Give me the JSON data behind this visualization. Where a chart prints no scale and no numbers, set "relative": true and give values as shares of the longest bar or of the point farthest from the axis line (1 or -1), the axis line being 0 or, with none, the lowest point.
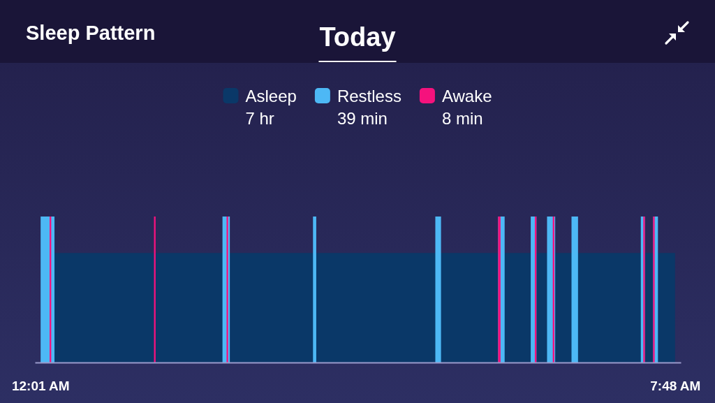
{
  "chart_data": {
    "type": "area",
    "title": "Sleep Pattern",
    "subtitle": "Today",
    "relative": true,
    "xlim": [
      -0.05,
      7.87
    ],
    "xticks": [
      {
        "value": 0.0167,
        "label": "12:01 AM"
      },
      {
        "value": 7.8,
        "label": "7:48 AM"
      }
    ],
    "legend": "top",
    "annotations": [
      "7 hr",
      "39 min",
      "8 min"
    ],
    "series": [
      {
        "name": "Asleep",
        "color": "#0a3868",
        "x": [
          0.19,
          0.19,
          7.8,
          7.8
        ],
        "values": [
          0,
          0.75,
          0.75,
          0
        ]
      },
      {
        "name": "Restless",
        "color": "#4db8f5",
        "x": [
          0.02,
          0.02,
          0.19,
          0.19,
          2.25,
          2.25,
          2.34,
          2.34,
          3.36,
          3.36,
          3.4,
          3.4,
          4.86,
          4.86,
          4.93,
          4.93,
          5.63,
          5.63,
          5.71,
          5.71,
          6.03,
          6.03,
          6.1,
          6.1,
          6.23,
          6.23,
          6.33,
          6.33,
          6.53,
          6.53,
          6.61,
          6.61,
          7.38,
          7.38,
          7.43,
          7.43,
          7.53,
          7.53,
          7.59,
          7.59
        ],
        "values": [
          0,
          1,
          1,
          0,
          0,
          1,
          1,
          0,
          0,
          1,
          1,
          0,
          0,
          1,
          1,
          0,
          0,
          1,
          1,
          0,
          0,
          1,
          1,
          0,
          0,
          1,
          1,
          0,
          0,
          1,
          1,
          0,
          0,
          1,
          1,
          0,
          0,
          1,
          1,
          0
        ]
      },
      {
        "name": "Awake",
        "color": "#f5127d",
        "x": [
          0.13,
          0.13,
          0.15,
          0.15,
          1.41,
          1.41,
          1.43,
          1.43,
          2.3,
          2.3,
          2.32,
          2.32,
          5.63,
          5.63,
          5.66,
          5.66,
          6.08,
          6.08,
          6.1,
          6.1,
          6.3,
          6.3,
          6.32,
          6.32,
          7.41,
          7.41,
          7.43,
          7.43,
          7.53,
          7.53,
          7.55,
          7.55
        ],
        "values": [
          0,
          1,
          1,
          0,
          0,
          1,
          1,
          0,
          0,
          1,
          1,
          0,
          0,
          1,
          1,
          0,
          0,
          1,
          1,
          0,
          0,
          1,
          1,
          0,
          0,
          1,
          1,
          0,
          0,
          1,
          1,
          0
        ]
      }
    ]
  }
}
